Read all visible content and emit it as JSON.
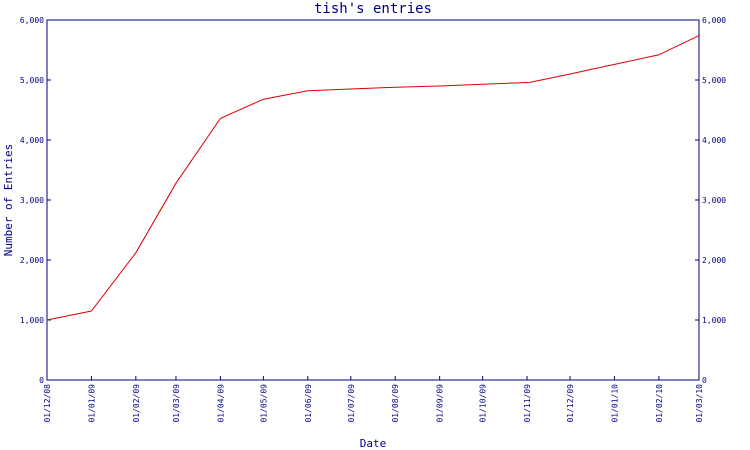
{
  "chart_data": {
    "type": "line",
    "title": "tish's entries",
    "xlabel": "Date",
    "ylabel": "Number of Entries",
    "ylim": [
      0,
      6000
    ],
    "yticks": [
      0,
      1000,
      2000,
      3000,
      4000,
      5000,
      6000
    ],
    "ytick_labels": [
      "0",
      "1,000",
      "2,000",
      "3,000",
      "4,000",
      "5,000",
      "6,000"
    ],
    "xlim": [
      "2008-12-01",
      "2010-03-01"
    ],
    "xtick_dates": [
      "2008-12-01",
      "2009-01-01",
      "2009-02-01",
      "2009-03-01",
      "2009-04-01",
      "2009-05-01",
      "2009-06-01",
      "2009-07-01",
      "2009-08-01",
      "2009-09-01",
      "2009-10-01",
      "2009-11-01",
      "2009-12-01",
      "2010-01-01",
      "2010-02-01",
      "2010-03-01"
    ],
    "xtick_labels": [
      "01/12/08",
      "01/01/09",
      "01/02/09",
      "01/03/09",
      "01/04/09",
      "01/05/09",
      "01/06/09",
      "01/07/09",
      "01/08/09",
      "01/09/09",
      "01/10/09",
      "01/11/09",
      "01/12/09",
      "01/01/10",
      "01/02/10",
      "01/03/10"
    ],
    "grid": false,
    "right_axis_mirrors_left": true,
    "colors": {
      "line": "#dd0000",
      "axes": "#000080",
      "text": "#000080"
    },
    "series": [
      {
        "x": [
          "2008-12-01",
          "2009-01-01",
          "2009-02-01",
          "2009-03-01",
          "2009-04-01",
          "2009-05-01",
          "2009-06-01",
          "2009-07-01",
          "2009-08-01",
          "2009-09-01",
          "2009-10-01",
          "2009-11-03",
          "2009-12-01",
          "2010-01-01",
          "2010-02-01",
          "2010-03-01"
        ],
        "y": [
          1000,
          1150,
          2120,
          3280,
          4360,
          4680,
          4820,
          4850,
          4880,
          4900,
          4930,
          4960,
          5100,
          5260,
          5420,
          5740
        ]
      }
    ]
  }
}
